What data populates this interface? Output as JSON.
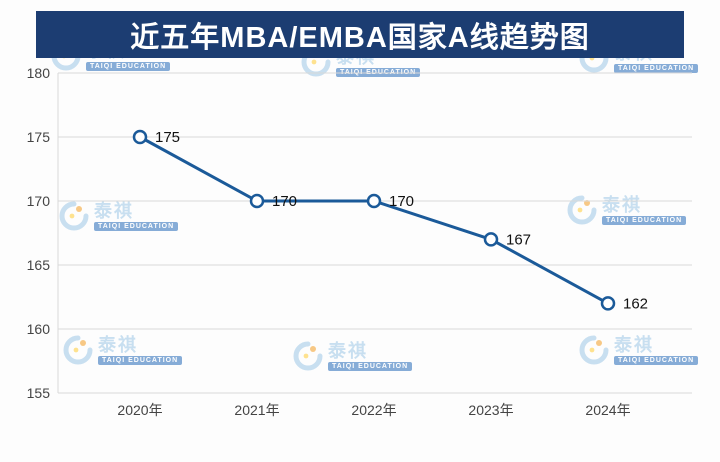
{
  "title_banner": {
    "text": "近五年MBA/EMBA国家A线趋势图"
  },
  "watermark": {
    "zh": "泰祺",
    "en": "TAIQI EDUCATION"
  },
  "chart_data": {
    "type": "line",
    "title": "近五年MBA/EMBA国家A线趋势图",
    "categories": [
      "2020年",
      "2021年",
      "2022年",
      "2023年",
      "2024年"
    ],
    "series": [
      {
        "name": "MBA/EMBA国家A线",
        "values": [
          175,
          170,
          170,
          167,
          162
        ]
      }
    ],
    "data_labels": [
      "175",
      "170",
      "170",
      "167",
      "162"
    ],
    "ylim": [
      155,
      180
    ],
    "yticks": [
      155,
      160,
      165,
      170,
      175,
      180
    ],
    "grid": "horizontal",
    "legend": "none",
    "colors": {
      "line": "#1b5a99",
      "marker_fill": "#ffffff",
      "marker_stroke": "#1b5a99",
      "gridline": "#d9d9d9",
      "banner_bg": "#1c3d72",
      "banner_text": "#ffffff",
      "tick_text": "#444444",
      "label_text": "#111111"
    }
  }
}
